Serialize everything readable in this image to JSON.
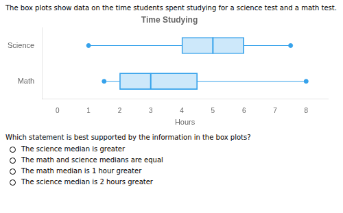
{
  "chart_data": {
    "type": "box",
    "title": "Time Studying",
    "x_label": "Hours",
    "categories": [
      "Science",
      "Math"
    ],
    "min": [
      1,
      1.5
    ],
    "q1": [
      4,
      2
    ],
    "median": [
      5,
      3
    ],
    "q3": [
      6,
      4.5
    ],
    "max": [
      7.5,
      8
    ],
    "xlim": [
      -0.5,
      8.7
    ],
    "xticks": [
      0,
      1,
      2,
      3,
      4,
      5,
      6,
      7,
      8
    ],
    "grid": false,
    "legend": false,
    "annotations": [
      "The box plots show data on the time students spent studying for a science test and a math test.",
      "Which statement is best supported by the information in the box plots?"
    ],
    "choices": [
      "The science median is greater",
      "The math and science medians are equal",
      "The math median is 1 hour greater",
      "The science median is 2 hours greater"
    ]
  }
}
